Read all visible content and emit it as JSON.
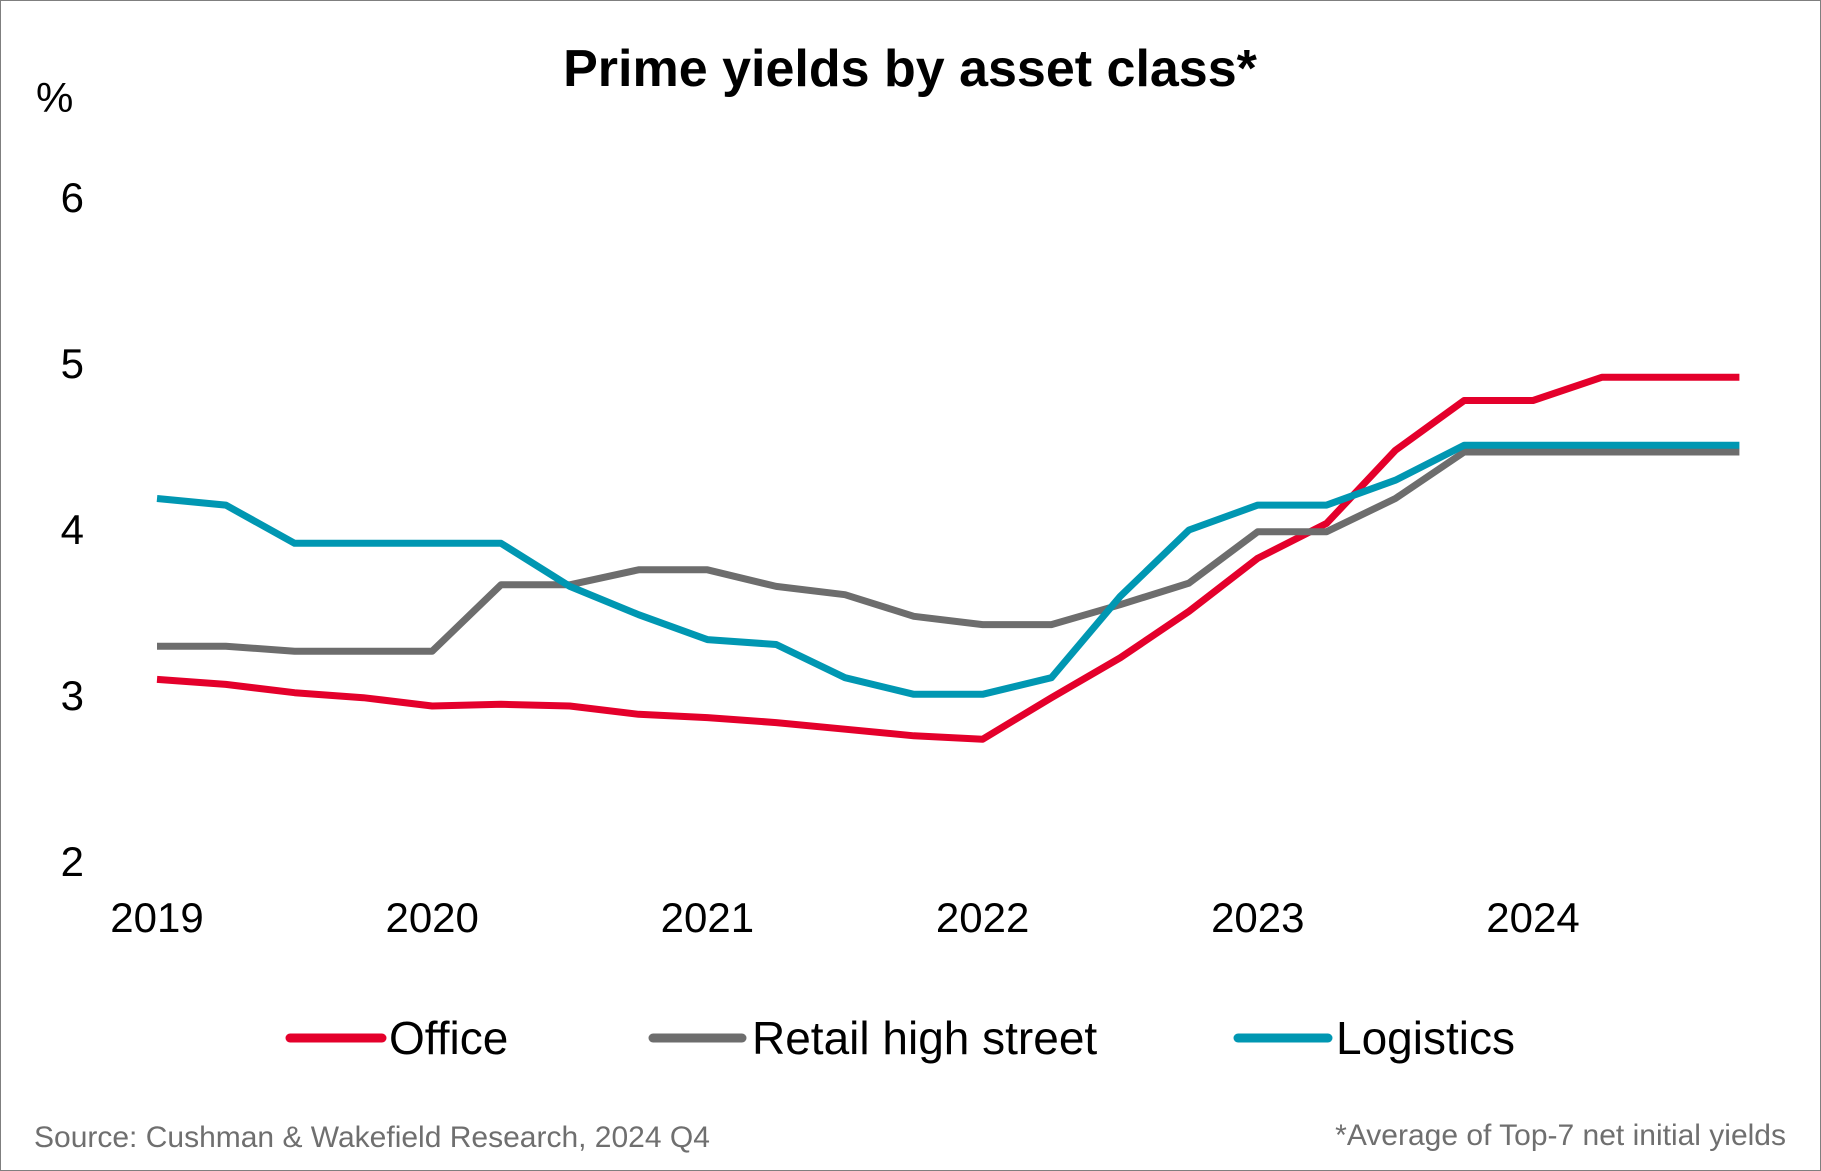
{
  "chart_data": {
    "type": "line",
    "title": "Prime yields by asset class*",
    "ylabel": "%",
    "xlabel": "",
    "ylim": [
      2,
      6
    ],
    "yticks": [
      "2",
      "3",
      "4",
      "5",
      "6"
    ],
    "xticks": [
      "2019",
      "2020",
      "2021",
      "2022",
      "2023",
      "2024"
    ],
    "grid": false,
    "legend_position": "bottom",
    "x": [
      2019.0,
      2019.25,
      2019.5,
      2019.75,
      2020.0,
      2020.25,
      2020.5,
      2020.75,
      2021.0,
      2021.25,
      2021.5,
      2021.75,
      2022.0,
      2022.25,
      2022.5,
      2022.75,
      2023.0,
      2023.25,
      2023.5,
      2023.75,
      2024.0,
      2024.25,
      2024.5,
      2024.75
    ],
    "series": [
      {
        "name": "Office",
        "color": "#e4002b",
        "values": [
          3.1,
          3.07,
          3.02,
          2.99,
          2.94,
          2.95,
          2.94,
          2.89,
          2.87,
          2.84,
          2.8,
          2.76,
          2.74,
          2.99,
          3.23,
          3.51,
          3.83,
          4.04,
          4.48,
          4.78,
          4.78,
          4.92,
          4.92,
          4.92
        ]
      },
      {
        "name": "Retail high street",
        "color": "#6d6d6d",
        "values": [
          3.3,
          3.3,
          3.27,
          3.27,
          3.27,
          3.67,
          3.67,
          3.76,
          3.76,
          3.66,
          3.61,
          3.48,
          3.43,
          3.43,
          3.55,
          3.68,
          3.99,
          3.99,
          4.19,
          4.47,
          4.47,
          4.47,
          4.47,
          4.47
        ]
      },
      {
        "name": "Logistics",
        "color": "#0097b2",
        "values": [
          4.19,
          4.15,
          3.92,
          3.92,
          3.92,
          3.92,
          3.66,
          3.49,
          3.34,
          3.31,
          3.11,
          3.01,
          3.01,
          3.11,
          3.6,
          4.0,
          4.15,
          4.15,
          4.3,
          4.51,
          4.51,
          4.51,
          4.51,
          4.51
        ]
      }
    ]
  },
  "footer": {
    "source": "Source: Cushman & Wakefield Research, 2024 Q4",
    "footnote": "*Average of Top-7 net initial yields"
  }
}
